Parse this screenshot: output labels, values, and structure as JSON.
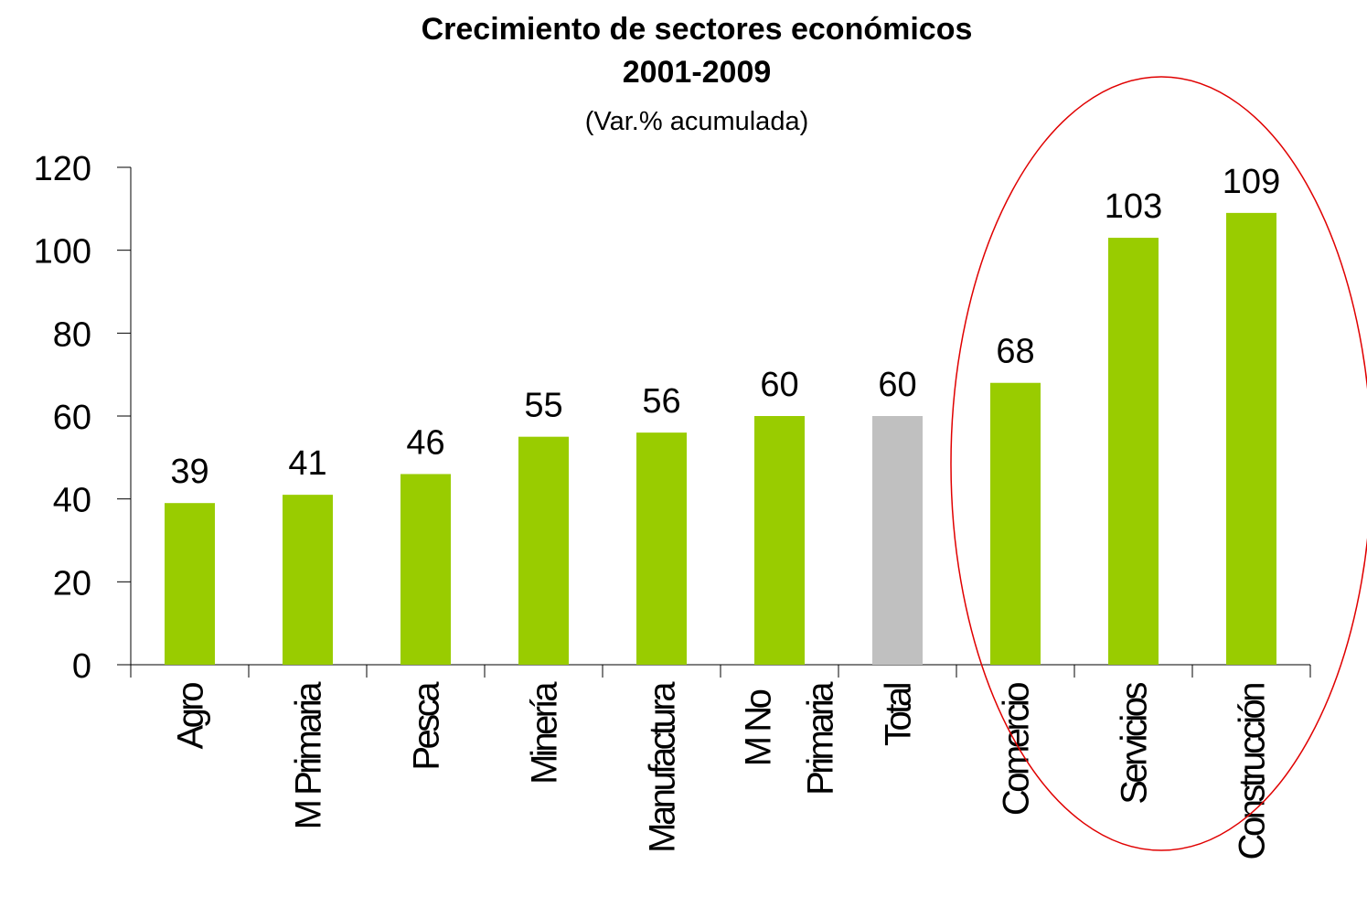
{
  "chart_data": {
    "type": "bar",
    "title": [
      "Crecimiento de sectores económicos",
      "2001-2009"
    ],
    "subtitle": "(Var.% acumulada)",
    "categories": [
      "Agro",
      "M Primaria",
      "Pesca",
      "Minería",
      "Manufactura",
      "M No Primaria",
      "Total",
      "Comercio",
      "Servicios",
      "Construcción"
    ],
    "values": [
      39,
      41,
      46,
      55,
      56,
      60,
      60,
      68,
      103,
      109
    ],
    "colors": [
      "#99cc00",
      "#99cc00",
      "#99cc00",
      "#99cc00",
      "#99cc00",
      "#99cc00",
      "#c0c0c0",
      "#99cc00",
      "#99cc00",
      "#99cc00"
    ],
    "ylim": [
      0,
      120
    ],
    "yticks": [
      0,
      20,
      40,
      60,
      80,
      100,
      120
    ],
    "grid": false
  }
}
